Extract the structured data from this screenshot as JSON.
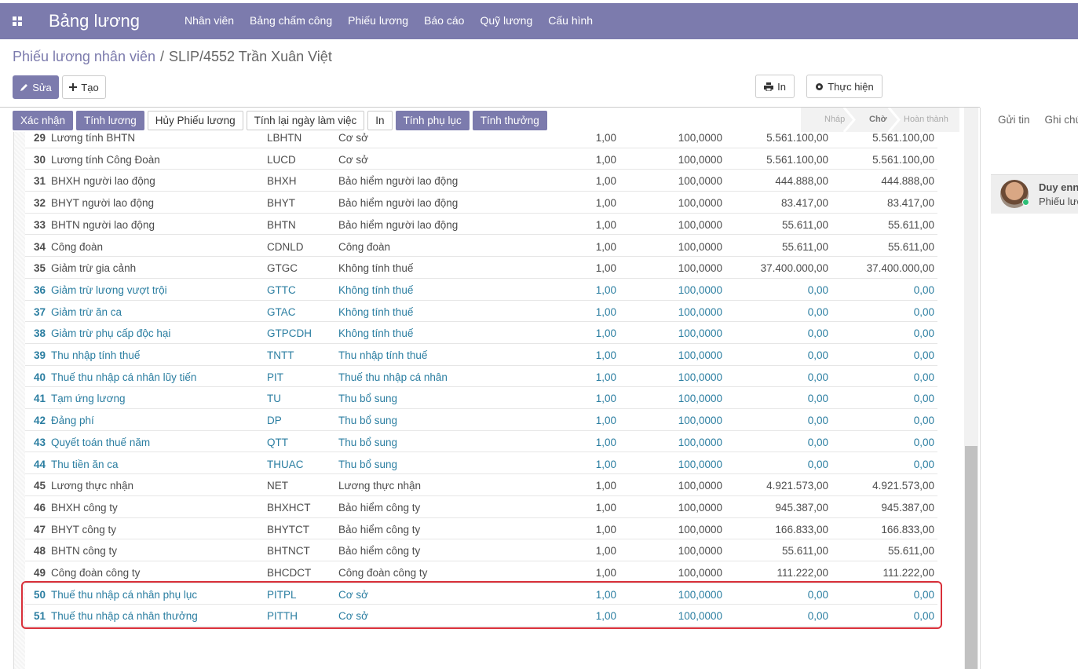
{
  "nav": {
    "app_title": "Bảng lương",
    "menu": [
      "Nhân viên",
      "Bảng chấm công",
      "Phiếu lương",
      "Báo cáo",
      "Quỹ lương",
      "Cấu hình"
    ]
  },
  "breadcrumb": {
    "parent": "Phiếu lương nhân viên",
    "separator": "/",
    "current": "SLIP/4552 Trần Xuân Việt"
  },
  "control_buttons": {
    "edit": "Sửa",
    "create": "Tạo",
    "print": "In",
    "action": "Thực hiện"
  },
  "action_buttons": [
    {
      "label": "Xác nhận",
      "primary": true
    },
    {
      "label": "Tính lương",
      "primary": true
    },
    {
      "label": "Hủy Phiếu lương",
      "primary": false
    },
    {
      "label": "Tính lại ngày làm việc",
      "primary": false
    },
    {
      "label": "In",
      "primary": false
    },
    {
      "label": "Tính phụ lục",
      "primary": true
    },
    {
      "label": "Tính thưởng",
      "primary": true
    }
  ],
  "status_bar": {
    "stages": [
      "Nháp",
      "Chờ",
      "Hoàn thành"
    ],
    "active": "Chờ"
  },
  "chatter": {
    "tabs": [
      "Gửi tin",
      "Ghi chú"
    ],
    "message": {
      "author": "Duy enn",
      "text": "Phiếu lươ"
    }
  },
  "table": {
    "rows": [
      {
        "cells": [
          "29",
          "Lương tính BHTN",
          "LBHTN",
          "Cơ sở",
          "1,00",
          "100,0000",
          "5.561.100,00",
          "5.561.100,00"
        ],
        "color": "#4c4c4c",
        "highlight": false
      },
      {
        "cells": [
          "30",
          "Lương tính Công Đoàn",
          "LUCD",
          "Cơ sở",
          "1,00",
          "100,0000",
          "5.561.100,00",
          "5.561.100,00"
        ],
        "color": "#4c4c4c",
        "highlight": false
      },
      {
        "cells": [
          "31",
          "BHXH người lao động",
          "BHXH",
          "Bảo hiểm người lao động",
          "1,00",
          "100,0000",
          "444.888,00",
          "444.888,00"
        ],
        "color": "#4c4c4c",
        "highlight": false
      },
      {
        "cells": [
          "32",
          "BHYT người lao động",
          "BHYT",
          "Bảo hiểm người lao động",
          "1,00",
          "100,0000",
          "83.417,00",
          "83.417,00"
        ],
        "color": "#4c4c4c",
        "highlight": false
      },
      {
        "cells": [
          "33",
          "BHTN người lao động",
          "BHTN",
          "Bảo hiểm người lao động",
          "1,00",
          "100,0000",
          "55.611,00",
          "55.611,00"
        ],
        "color": "#4c4c4c",
        "highlight": false
      },
      {
        "cells": [
          "34",
          "Công đoàn",
          "CDNLD",
          "Công đoàn",
          "1,00",
          "100,0000",
          "55.611,00",
          "55.611,00"
        ],
        "color": "#4c4c4c",
        "highlight": false
      },
      {
        "cells": [
          "35",
          "Giảm trừ gia cảnh",
          "GTGC",
          "Không tính thuế",
          "1,00",
          "100,0000",
          "37.400.000,00",
          "37.400.000,00"
        ],
        "color": "#4c4c4c",
        "highlight": false
      },
      {
        "cells": [
          "36",
          "Giảm trừ lương vượt trội",
          "GTTC",
          "Không tính thuế",
          "1,00",
          "100,0000",
          "0,00",
          "0,00"
        ],
        "color": "#2b7ea1",
        "highlight": false
      },
      {
        "cells": [
          "37",
          "Giảm trừ ăn ca",
          "GTAC",
          "Không tính thuế",
          "1,00",
          "100,0000",
          "0,00",
          "0,00"
        ],
        "color": "#2b7ea1",
        "highlight": false
      },
      {
        "cells": [
          "38",
          "Giảm trừ phụ cấp độc hại",
          "GTPCDH",
          "Không tính thuế",
          "1,00",
          "100,0000",
          "0,00",
          "0,00"
        ],
        "color": "#2b7ea1",
        "highlight": false
      },
      {
        "cells": [
          "39",
          "Thu nhập tính thuế",
          "TNTT",
          "Thu nhập tính thuế",
          "1,00",
          "100,0000",
          "0,00",
          "0,00"
        ],
        "color": "#2b7ea1",
        "highlight": false
      },
      {
        "cells": [
          "40",
          "Thuế thu nhập cá nhân lũy tiến",
          "PIT",
          "Thuế thu nhập cá nhân",
          "1,00",
          "100,0000",
          "0,00",
          "0,00"
        ],
        "color": "#2b7ea1",
        "highlight": false
      },
      {
        "cells": [
          "41",
          "Tạm ứng lương",
          "TU",
          "Thu bổ sung",
          "1,00",
          "100,0000",
          "0,00",
          "0,00"
        ],
        "color": "#2b7ea1",
        "highlight": false
      },
      {
        "cells": [
          "42",
          "Đảng phí",
          "DP",
          "Thu bổ sung",
          "1,00",
          "100,0000",
          "0,00",
          "0,00"
        ],
        "color": "#2b7ea1",
        "highlight": false
      },
      {
        "cells": [
          "43",
          "Quyết toán thuế năm",
          "QTT",
          "Thu bổ sung",
          "1,00",
          "100,0000",
          "0,00",
          "0,00"
        ],
        "color": "#2b7ea1",
        "highlight": false
      },
      {
        "cells": [
          "44",
          "Thu tiền ăn ca",
          "THUAC",
          "Thu bổ sung",
          "1,00",
          "100,0000",
          "0,00",
          "0,00"
        ],
        "color": "#2b7ea1",
        "highlight": false
      },
      {
        "cells": [
          "45",
          "Lương thực nhận",
          "NET",
          "Lương thực nhận",
          "1,00",
          "100,0000",
          "4.921.573,00",
          "4.921.573,00"
        ],
        "color": "#4c4c4c",
        "highlight": false
      },
      {
        "cells": [
          "46",
          "BHXH công ty",
          "BHXHCT",
          "Bảo hiểm công ty",
          "1,00",
          "100,0000",
          "945.387,00",
          "945.387,00"
        ],
        "color": "#4c4c4c",
        "highlight": false
      },
      {
        "cells": [
          "47",
          "BHYT công ty",
          "BHYTCT",
          "Bảo hiểm công ty",
          "1,00",
          "100,0000",
          "166.833,00",
          "166.833,00"
        ],
        "color": "#4c4c4c",
        "highlight": false
      },
      {
        "cells": [
          "48",
          "BHTN công ty",
          "BHTNCT",
          "Bảo hiểm công ty",
          "1,00",
          "100,0000",
          "55.611,00",
          "55.611,00"
        ],
        "color": "#4c4c4c",
        "highlight": false
      },
      {
        "cells": [
          "49",
          "Công đoàn công ty",
          "BHCDCT",
          "Công đoàn công ty",
          "1,00",
          "100,0000",
          "111.222,00",
          "111.222,00"
        ],
        "color": "#4c4c4c",
        "highlight": false
      },
      {
        "cells": [
          "50",
          "Thuế thu nhập cá nhân phụ lục",
          "PITPL",
          "Cơ sở",
          "1,00",
          "100,0000",
          "0,00",
          "0,00"
        ],
        "color": "#2b7ea1",
        "highlight": true
      },
      {
        "cells": [
          "51",
          "Thuế thu nhập cá nhân thưởng",
          "PITTH",
          "Cơ sở",
          "1,00",
          "100,0000",
          "0,00",
          "0,00"
        ],
        "color": "#2b7ea1",
        "highlight": true
      }
    ]
  }
}
